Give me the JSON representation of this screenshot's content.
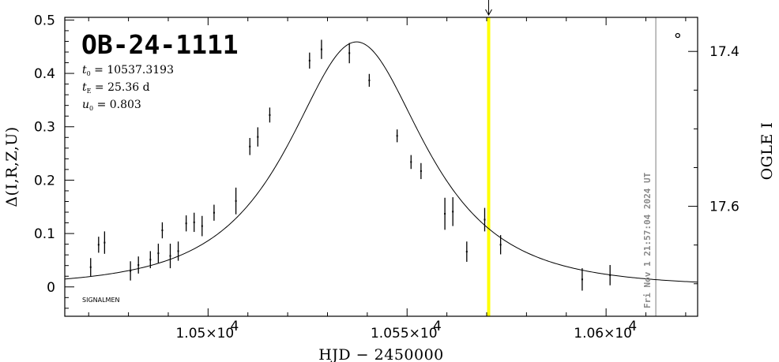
{
  "chart_data": {
    "type": "scatter",
    "title": "OB-24-1111",
    "params": [
      {
        "sym": "t",
        "sub": "0",
        "text": " = 10537.3193"
      },
      {
        "sym": "t",
        "sub": "E",
        "text": " = 25.36 d"
      },
      {
        "sym": "u",
        "sub": "0",
        "text": " = 0.803"
      }
    ],
    "xlabel": "HJD  −  2450000",
    "ylabel": "Δ(I,R,Z,U)",
    "y2label": "OGLE I",
    "xlim": [
      10464,
      10623
    ],
    "ylim": [
      -0.055,
      0.505
    ],
    "y2lim": [
      17.742,
      17.356
    ],
    "x_ticks": [
      {
        "value": 10500,
        "label": "1.05×10",
        "exp": "4"
      },
      {
        "value": 10550,
        "label": "1.055×10",
        "exp": "4"
      },
      {
        "value": 10600,
        "label": "1.06×10",
        "exp": "4"
      }
    ],
    "y_ticks": [
      {
        "value": 0,
        "label": "0"
      },
      {
        "value": 0.1,
        "label": "0.1"
      },
      {
        "value": 0.2,
        "label": "0.2"
      },
      {
        "value": 0.3,
        "label": "0.3"
      },
      {
        "value": 0.4,
        "label": "0.4"
      },
      {
        "value": 0.5,
        "label": "0.5"
      }
    ],
    "y2_ticks": [
      {
        "value": 17.4,
        "label": "17.4"
      },
      {
        "value": 17.6,
        "label": "17.6"
      }
    ],
    "model": {
      "t0": 10537.3193,
      "tE": 25.36,
      "u0": 0.803,
      "peak": 0.459,
      "color": "#000000"
    },
    "points": [
      {
        "x": 10470.5,
        "y": 0.037,
        "err": 0.017
      },
      {
        "x": 10472.5,
        "y": 0.079,
        "err": 0.015
      },
      {
        "x": 10474.0,
        "y": 0.083,
        "err": 0.021
      },
      {
        "x": 10480.5,
        "y": 0.03,
        "err": 0.018
      },
      {
        "x": 10482.5,
        "y": 0.041,
        "err": 0.016
      },
      {
        "x": 10485.5,
        "y": 0.051,
        "err": 0.016
      },
      {
        "x": 10487.5,
        "y": 0.063,
        "err": 0.018
      },
      {
        "x": 10488.5,
        "y": 0.106,
        "err": 0.015
      },
      {
        "x": 10490.5,
        "y": 0.058,
        "err": 0.023
      },
      {
        "x": 10492.5,
        "y": 0.067,
        "err": 0.018
      },
      {
        "x": 10494.5,
        "y": 0.119,
        "err": 0.015
      },
      {
        "x": 10496.5,
        "y": 0.121,
        "err": 0.018
      },
      {
        "x": 10498.5,
        "y": 0.114,
        "err": 0.019
      },
      {
        "x": 10501.5,
        "y": 0.139,
        "err": 0.015
      },
      {
        "x": 10507.0,
        "y": 0.161,
        "err": 0.025
      },
      {
        "x": 10510.5,
        "y": 0.263,
        "err": 0.016
      },
      {
        "x": 10512.5,
        "y": 0.281,
        "err": 0.018
      },
      {
        "x": 10515.5,
        "y": 0.322,
        "err": 0.014
      },
      {
        "x": 10525.5,
        "y": 0.424,
        "err": 0.015
      },
      {
        "x": 10528.5,
        "y": 0.445,
        "err": 0.018
      },
      {
        "x": 10535.5,
        "y": 0.438,
        "err": 0.019
      },
      {
        "x": 10540.5,
        "y": 0.387,
        "err": 0.012
      },
      {
        "x": 10547.5,
        "y": 0.283,
        "err": 0.012
      },
      {
        "x": 10551.0,
        "y": 0.234,
        "err": 0.013
      },
      {
        "x": 10553.5,
        "y": 0.217,
        "err": 0.015
      },
      {
        "x": 10559.5,
        "y": 0.137,
        "err": 0.03
      },
      {
        "x": 10561.5,
        "y": 0.141,
        "err": 0.027
      },
      {
        "x": 10565.0,
        "y": 0.066,
        "err": 0.019
      },
      {
        "x": 10569.5,
        "y": 0.126,
        "err": 0.022
      },
      {
        "x": 10573.5,
        "y": 0.079,
        "err": 0.018
      },
      {
        "x": 10594.0,
        "y": 0.014,
        "err": 0.021
      },
      {
        "x": 10601.0,
        "y": 0.022,
        "err": 0.019
      },
      {
        "x": 10618.0,
        "y": 0.471,
        "err": 0.0
      }
    ],
    "markers": {
      "current_time": {
        "x": 10570.5,
        "color": "#ffff00"
      },
      "date_line": {
        "x": 10612.5,
        "color": "#aaaaaa",
        "label": "Fri Nov  1 21:57:04 2024 UT"
      }
    },
    "annotation": "SIGNALMEN"
  }
}
